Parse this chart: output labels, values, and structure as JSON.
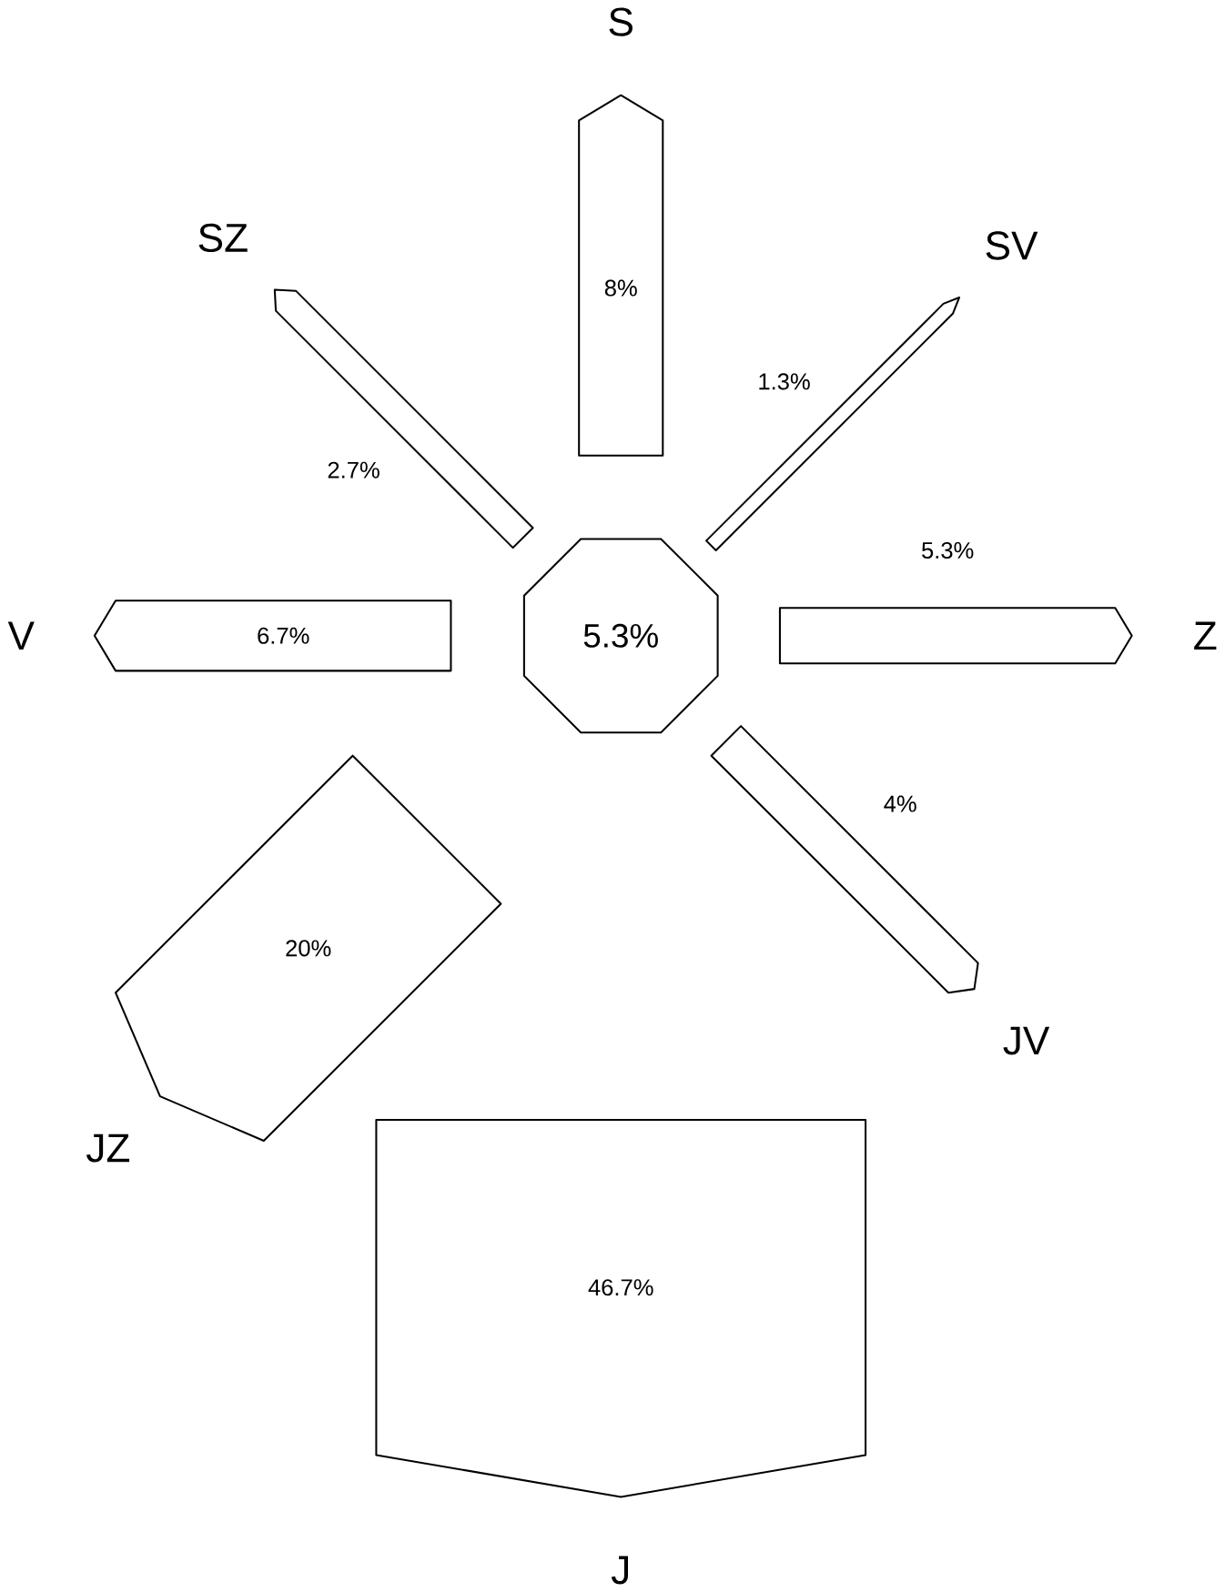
{
  "chart_data": {
    "type": "other",
    "categories": [
      "S",
      "SV",
      "Z",
      "JV",
      "J",
      "JZ",
      "V",
      "SZ"
    ],
    "values": [
      8,
      1.3,
      5.3,
      4,
      46.7,
      20,
      6.7,
      2.7
    ],
    "value_labels": [
      "8%",
      "1.3%",
      "5.3%",
      "4%",
      "46.7%",
      "20%",
      "6.7%",
      "2.7%"
    ],
    "annotations": [
      "5.3%"
    ]
  }
}
